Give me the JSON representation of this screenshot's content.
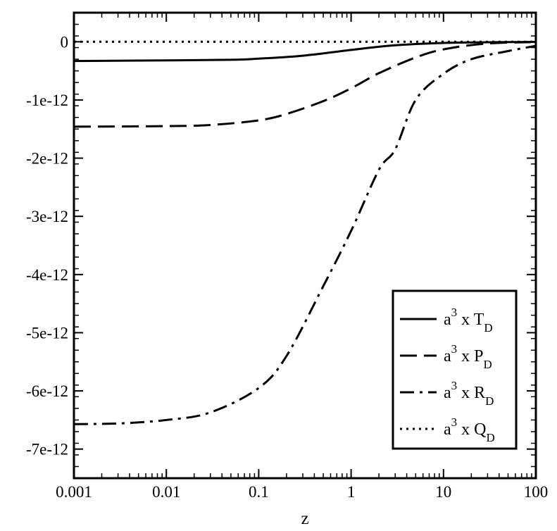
{
  "chart_data": {
    "type": "line",
    "xlabel": "z",
    "ylabel": "",
    "x_scale": "log",
    "xlim": [
      0.001,
      100
    ],
    "ylim": [
      -7.5e-12,
      5e-13
    ],
    "x_ticks": [
      0.001,
      0.01,
      0.1,
      1,
      10,
      100
    ],
    "x_tick_labels": [
      "0.001",
      "0.01",
      "0.1",
      "1",
      "10",
      "100"
    ],
    "y_ticks": [
      0,
      -1e-12,
      -2e-12,
      -3e-12,
      -4e-12,
      -5e-12,
      -6e-12,
      -7e-12
    ],
    "y_tick_labels": [
      "0",
      "-1e-12",
      "-2e-12",
      "-3e-12",
      "-4e-12",
      "-5e-12",
      "-6e-12",
      "-7e-12"
    ],
    "grid": false,
    "legend_position": "bottom-right",
    "series": [
      {
        "name": "T_D",
        "legend": {
          "prefix": "a",
          "power": "3",
          "mid": " x ",
          "symbol": "T",
          "sub": "D"
        },
        "style": "solid",
        "x": [
          0.001,
          0.01,
          0.05,
          0.1,
          0.3,
          1,
          3,
          10,
          30,
          100
        ],
        "y": [
          -3.3e-13,
          -3.2e-13,
          -3.1e-13,
          -2.9e-13,
          -2.4e-13,
          -1.4e-13,
          -6e-14,
          -2e-14,
          -8e-15,
          -2e-15
        ]
      },
      {
        "name": "P_D",
        "legend": {
          "prefix": "a",
          "power": "3",
          "mid": " x ",
          "symbol": "P",
          "sub": "D"
        },
        "style": "dashed",
        "x": [
          0.001,
          0.01,
          0.03,
          0.1,
          0.2,
          0.5,
          1,
          2,
          5,
          10,
          30,
          100
        ],
        "y": [
          -1.46e-12,
          -1.45e-12,
          -1.43e-12,
          -1.35e-12,
          -1.24e-12,
          -1.02e-12,
          -8e-13,
          -5.4e-13,
          -2.7e-13,
          -1.3e-13,
          -3e-14,
          -5e-15
        ]
      },
      {
        "name": "R_D",
        "legend": {
          "prefix": "a",
          "power": "3",
          "mid": " x ",
          "symbol": "R",
          "sub": "D"
        },
        "style": "dashdot",
        "x": [
          0.001,
          0.003,
          0.01,
          0.03,
          0.1,
          0.2,
          0.5,
          1,
          2,
          3,
          5,
          10,
          20,
          50,
          100
        ],
        "y": [
          -6.57e-12,
          -6.56e-12,
          -6.5e-12,
          -6.37e-12,
          -5.95e-12,
          -5.4e-12,
          -4.2e-12,
          -3.25e-12,
          -2.2e-12,
          -1.85e-12,
          -1e-12,
          -5.5e-13,
          -3e-13,
          -1.6e-13,
          -7e-14
        ]
      },
      {
        "name": "Q_D",
        "legend": {
          "prefix": "a",
          "power": "3",
          "mid": " x ",
          "symbol": "Q",
          "sub": "D"
        },
        "style": "dotted",
        "x": [
          0.001,
          100
        ],
        "y": [
          0,
          0
        ]
      }
    ]
  }
}
